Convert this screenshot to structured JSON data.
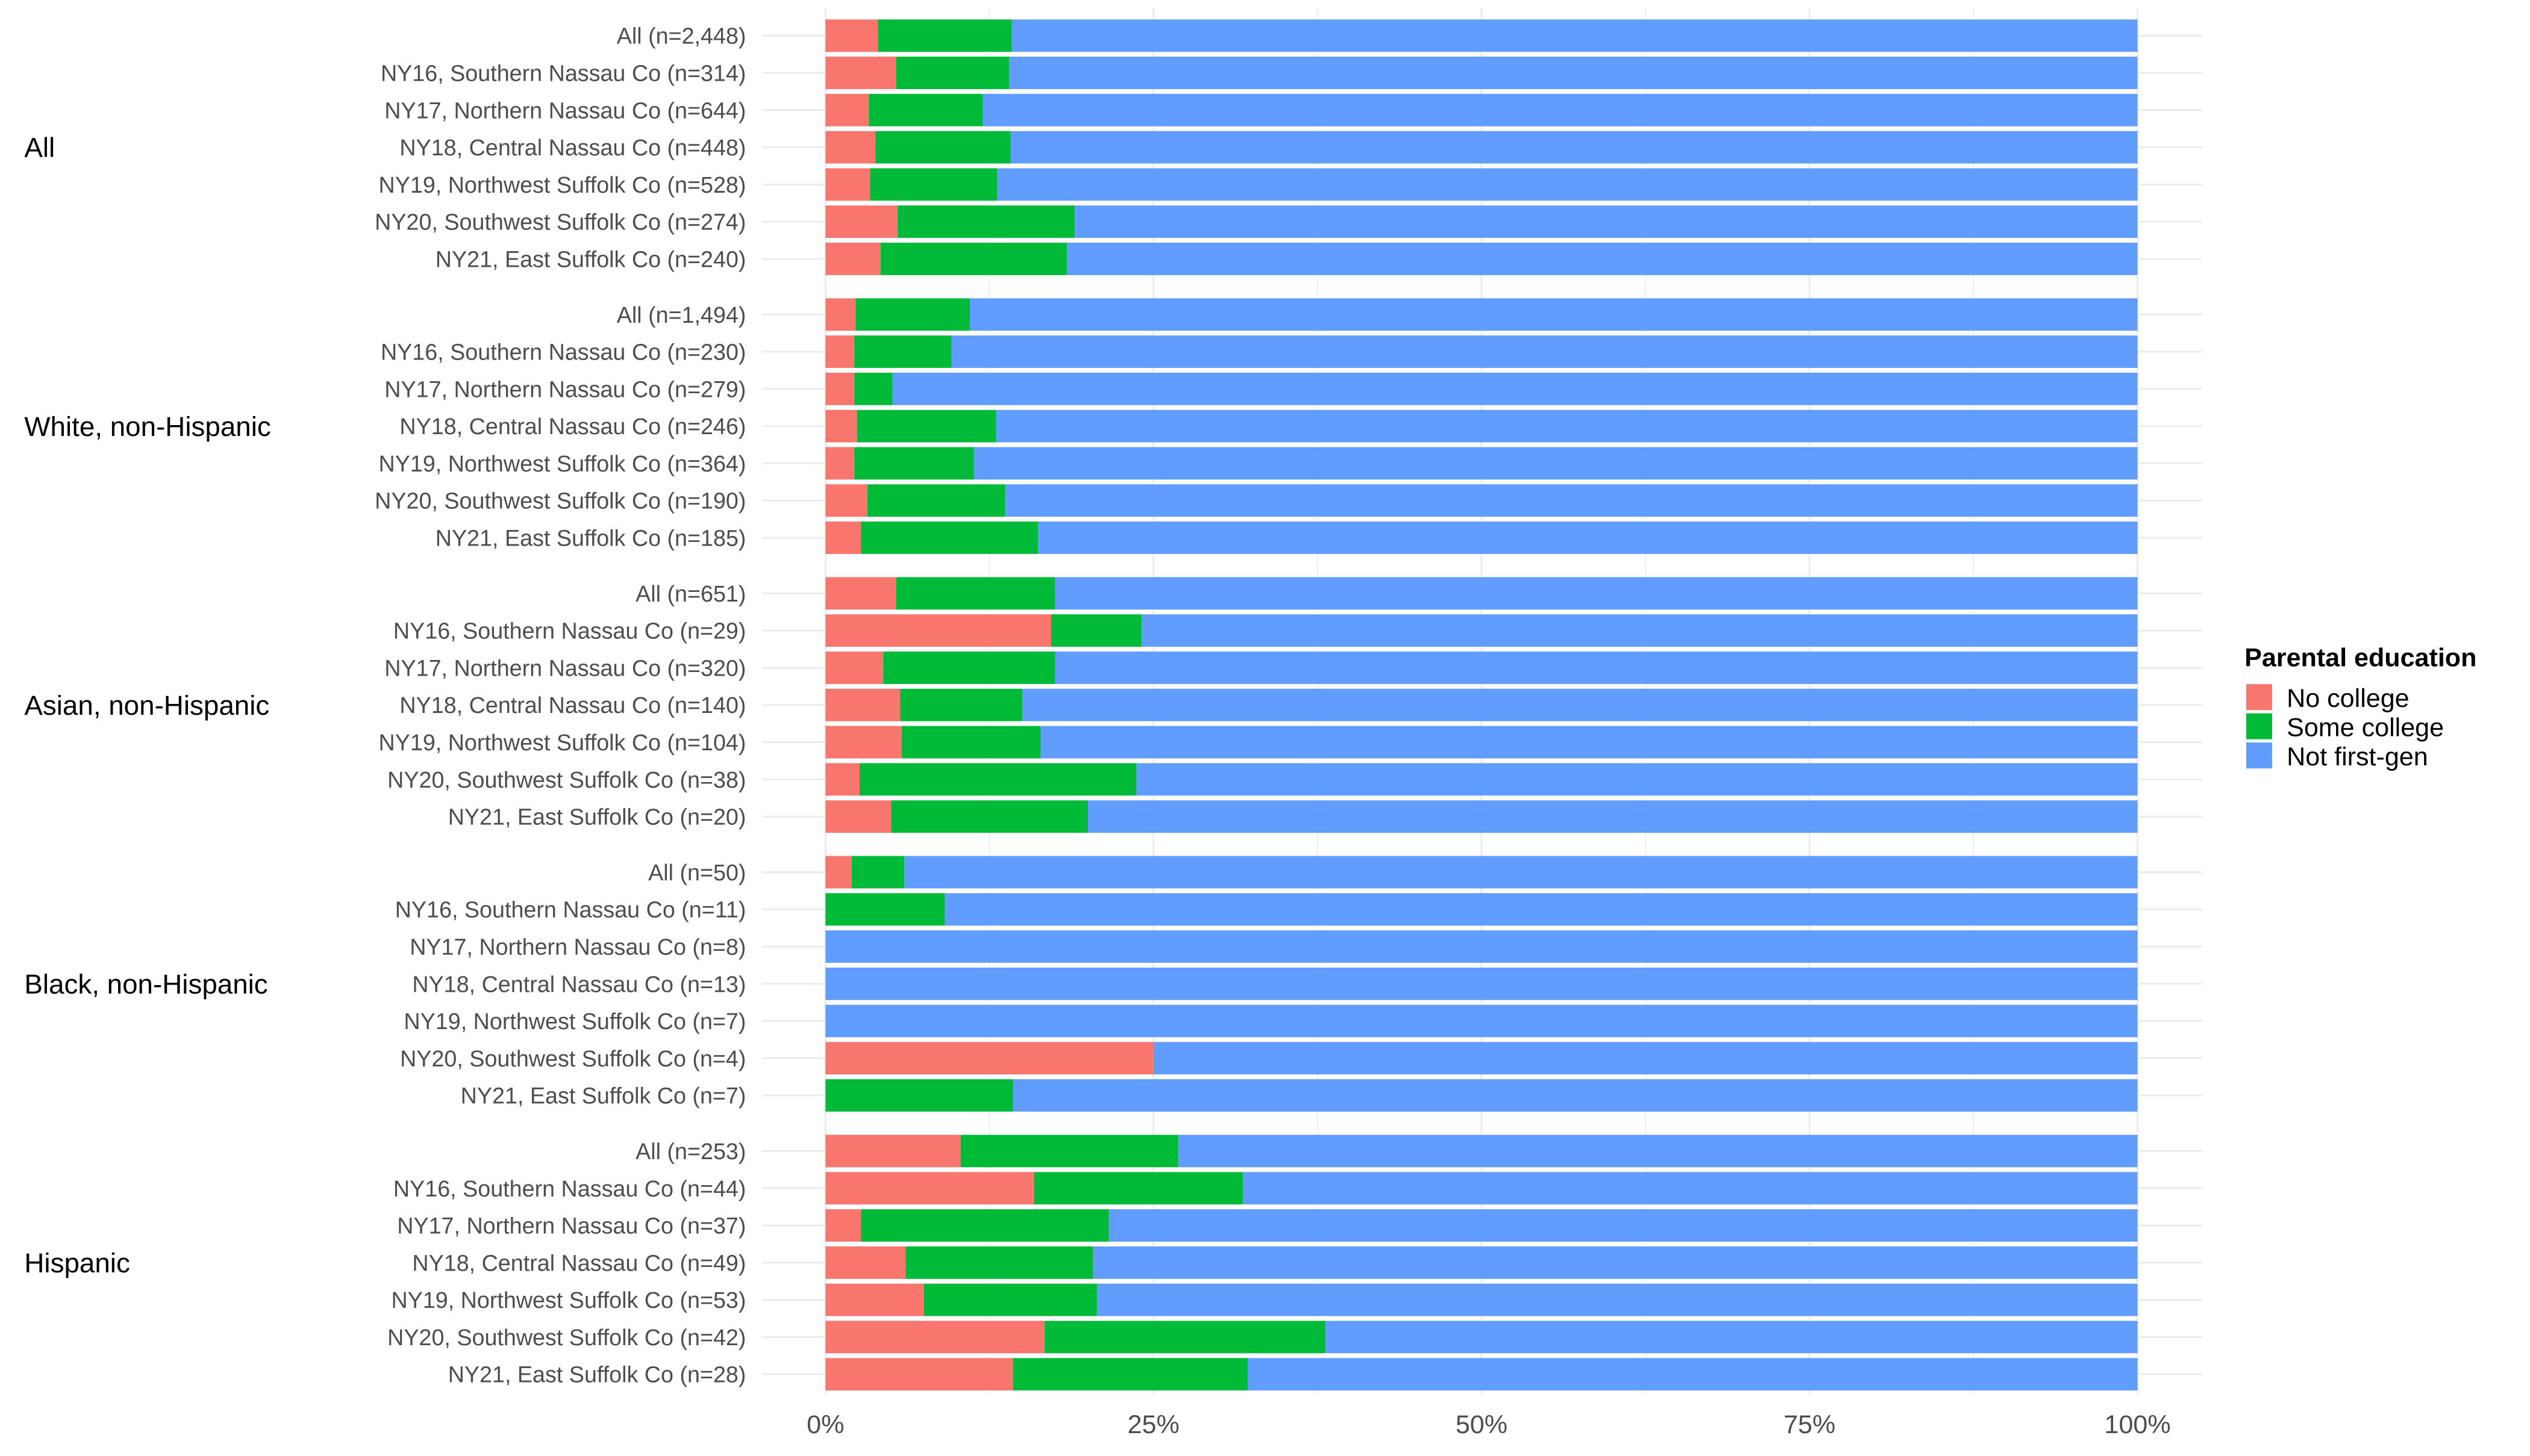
{
  "chart_data": {
    "type": "bar",
    "orientation": "horizontal",
    "stacked": true,
    "xlabel": "",
    "ylabel": "",
    "xlim": [
      0,
      100
    ],
    "x_ticks": [
      "0%",
      "25%",
      "50%",
      "75%",
      "100%"
    ],
    "legend": {
      "title": "Parental education",
      "position": "right",
      "entries": [
        "No college",
        "Some college",
        "Not first-gen"
      ]
    },
    "colors": {
      "No college": "#F8766D",
      "Some college": "#00BA38",
      "Not first-gen": "#619CFF"
    },
    "groups": [
      {
        "name": "All",
        "rows": [
          {
            "label": "All (n=2,448)",
            "values": [
              4.0,
              10.2,
              85.8
            ]
          },
          {
            "label": "NY16, Southern Nassau Co (n=314)",
            "values": [
              5.4,
              8.6,
              86.0
            ]
          },
          {
            "label": "NY17, Northern Nassau Co (n=644)",
            "values": [
              3.3,
              8.7,
              88.0
            ]
          },
          {
            "label": "NY18, Central Nassau Co (n=448)",
            "values": [
              3.8,
              10.3,
              85.9
            ]
          },
          {
            "label": "NY19, Northwest Suffolk Co (n=528)",
            "values": [
              3.4,
              9.7,
              86.9
            ]
          },
          {
            "label": "NY20, Southwest Suffolk Co (n=274)",
            "values": [
              5.5,
              13.5,
              81.0
            ]
          },
          {
            "label": "NY21, East Suffolk Co (n=240)",
            "values": [
              4.2,
              14.2,
              81.6
            ]
          }
        ]
      },
      {
        "name": "White, non-Hispanic",
        "rows": [
          {
            "label": "All (n=1,494)",
            "values": [
              2.3,
              8.7,
              89.0
            ]
          },
          {
            "label": "NY16, Southern Nassau Co (n=230)",
            "values": [
              2.2,
              7.4,
              90.4
            ]
          },
          {
            "label": "NY17, Northern Nassau Co (n=279)",
            "values": [
              2.2,
              2.9,
              94.9
            ]
          },
          {
            "label": "NY18, Central Nassau Co (n=246)",
            "values": [
              2.4,
              10.6,
              87.0
            ]
          },
          {
            "label": "NY19, Northwest Suffolk Co (n=364)",
            "values": [
              2.2,
              9.1,
              88.7
            ]
          },
          {
            "label": "NY20, Southwest Suffolk Co (n=190)",
            "values": [
              3.2,
              10.5,
              86.3
            ]
          },
          {
            "label": "NY21, East Suffolk Co (n=185)",
            "values": [
              2.7,
              13.5,
              83.8
            ]
          }
        ]
      },
      {
        "name": "Asian, non-Hispanic",
        "rows": [
          {
            "label": "All (n=651)",
            "values": [
              5.4,
              12.1,
              82.5
            ]
          },
          {
            "label": "NY16, Southern Nassau Co (n=29)",
            "values": [
              17.2,
              6.9,
              75.9
            ]
          },
          {
            "label": "NY17, Northern Nassau Co (n=320)",
            "values": [
              4.4,
              13.1,
              82.5
            ]
          },
          {
            "label": "NY18, Central Nassau Co (n=140)",
            "values": [
              5.7,
              9.3,
              85.0
            ]
          },
          {
            "label": "NY19, Northwest Suffolk Co (n=104)",
            "values": [
              5.8,
              10.6,
              83.6
            ]
          },
          {
            "label": "NY20, Southwest Suffolk Co (n=38)",
            "values": [
              2.6,
              21.1,
              76.3
            ]
          },
          {
            "label": "NY21, East Suffolk Co (n=20)",
            "values": [
              5.0,
              15.0,
              80.0
            ]
          }
        ]
      },
      {
        "name": "Black, non-Hispanic",
        "rows": [
          {
            "label": "All (n=50)",
            "values": [
              2.0,
              4.0,
              94.0
            ]
          },
          {
            "label": "NY16, Southern Nassau Co (n=11)",
            "values": [
              0,
              9.1,
              90.9
            ]
          },
          {
            "label": "NY17, Northern Nassau Co (n=8)",
            "values": [
              0,
              0,
              100
            ]
          },
          {
            "label": "NY18, Central Nassau Co (n=13)",
            "values": [
              0,
              0,
              100
            ]
          },
          {
            "label": "NY19, Northwest Suffolk Co (n=7)",
            "values": [
              0,
              0,
              100
            ]
          },
          {
            "label": "NY20, Southwest Suffolk Co (n=4)",
            "values": [
              25.0,
              0,
              75.0
            ]
          },
          {
            "label": "NY21, East Suffolk Co (n=7)",
            "values": [
              0,
              14.3,
              85.7
            ]
          }
        ]
      },
      {
        "name": "Hispanic",
        "rows": [
          {
            "label": "All (n=253)",
            "values": [
              10.3,
              16.6,
              73.1
            ]
          },
          {
            "label": "NY16, Southern Nassau Co (n=44)",
            "values": [
              15.9,
              15.9,
              68.2
            ]
          },
          {
            "label": "NY17, Northern Nassau Co (n=37)",
            "values": [
              2.7,
              18.9,
              78.4
            ]
          },
          {
            "label": "NY18, Central Nassau Co (n=49)",
            "values": [
              6.1,
              14.3,
              79.6
            ]
          },
          {
            "label": "NY19, Northwest Suffolk Co (n=53)",
            "values": [
              7.5,
              13.2,
              79.3
            ]
          },
          {
            "label": "NY20, Southwest Suffolk Co (n=42)",
            "values": [
              16.7,
              21.4,
              61.9
            ]
          },
          {
            "label": "NY21, East Suffolk Co (n=28)",
            "values": [
              14.3,
              17.9,
              67.8
            ]
          }
        ]
      }
    ]
  }
}
